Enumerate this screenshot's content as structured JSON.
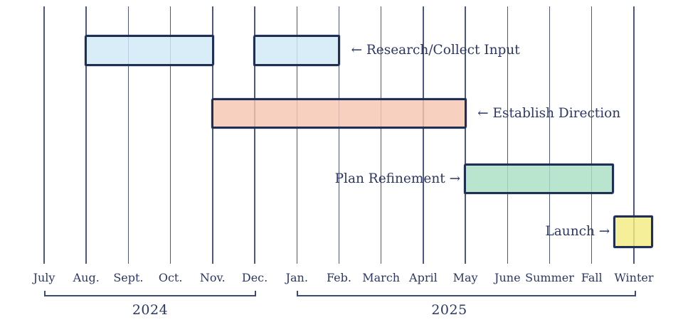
{
  "chart_data": {
    "type": "gantt-timeline",
    "title": "",
    "grid": true,
    "months": [
      "July",
      "Aug.",
      "Sept.",
      "Oct.",
      "Nov.",
      "Dec.",
      "Jan.",
      "Feb.",
      "March",
      "April",
      "May",
      "June",
      "Summer",
      "Fall",
      "Winter"
    ],
    "year_groups": [
      {
        "label": "2024",
        "start_month": "July",
        "end_month": "Dec.",
        "start_index": 0,
        "end_index": 5
      },
      {
        "label": "2025",
        "start_month": "Jan.",
        "end_month": "Winter",
        "start_index": 6,
        "end_index": 14
      }
    ],
    "tasks": [
      {
        "name": "Research/Collect Input",
        "label": "← Research/Collect Input",
        "label_side": "right",
        "fill": "#cfe9f7",
        "segments": [
          {
            "from_month": "Aug.",
            "to_month": "Nov.",
            "from": 1,
            "to": 4
          },
          {
            "from_month": "Dec.",
            "to_month": "Feb.",
            "from": 5,
            "to": 7
          }
        ]
      },
      {
        "name": "Establish Direction",
        "label": "← Establish Direction",
        "label_side": "right",
        "fill": "#f7c6b1",
        "segments": [
          {
            "from_month": "Nov.",
            "to_month": "May",
            "from": 4,
            "to": 10
          }
        ]
      },
      {
        "name": "Plan Refinement",
        "label": "Plan Refinement →",
        "label_side": "left",
        "fill": "#a9dfc4",
        "segments": [
          {
            "from_month": "May",
            "to_month": "between Fall and Winter",
            "from": 10,
            "to": 13.5
          }
        ]
      },
      {
        "name": "Launch",
        "label": "Launch →",
        "label_side": "left",
        "fill": "#f3ec84",
        "segments": [
          {
            "from_month": "Winter",
            "to_month": "Winter",
            "from": 13.55,
            "to": 14.42
          }
        ]
      }
    ],
    "colors": {
      "background": "#ffffff",
      "gridline": "#4d5880",
      "bar_border": "#203055",
      "text": "#2c3763",
      "bracket": "#3d4a75",
      "research_fill": "#cfe9f7",
      "establish_fill": "#f7c6b1",
      "refinement_fill": "#a9dfc4",
      "launch_fill": "#f3ec84"
    }
  }
}
